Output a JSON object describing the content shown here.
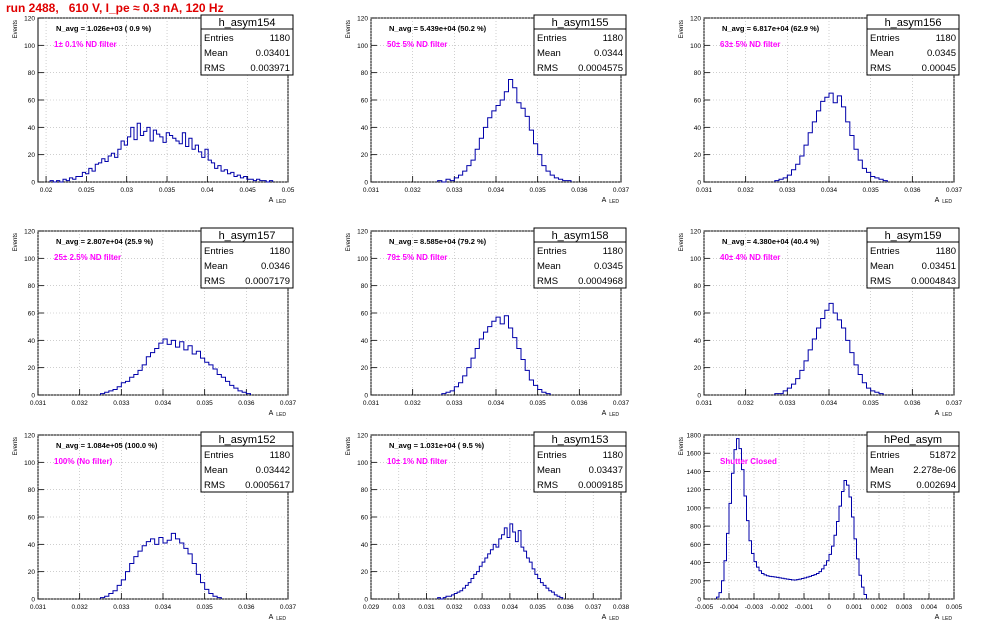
{
  "header": {
    "title": "run 2488,   610 V, I_pe ≈ 0.3 nA, 120 Hz"
  },
  "common": {
    "ylabel": "Events",
    "xlabel": "A",
    "xlabel_sub": "LED",
    "stat_keys": [
      "Entries",
      "Mean",
      "RMS"
    ]
  },
  "colors": {
    "title": "#e00000",
    "annotation": "#ff00ff",
    "histogram": "#0000aa",
    "grid": "#b0b0b0"
  },
  "chart_data": [
    {
      "type": "histogram",
      "name": "h_asym154",
      "navg": "N_avg = 1.026e+03 ( 0.9 %)",
      "annotation": "1± 0.1% ND filter",
      "stats": {
        "Entries": "1180",
        "Mean": "0.03401",
        "RMS": "0.003971"
      },
      "xlim": [
        0.019,
        0.05
      ],
      "ylim": [
        0,
        120
      ],
      "xticks": [
        0.02,
        0.025,
        0.03,
        0.035,
        0.04,
        0.045,
        0.05
      ],
      "xtick_labels": [
        "0.02",
        "0.025",
        "0.03",
        "0.035",
        "0.04",
        "0.045",
        "0.05"
      ],
      "yticks": [
        0,
        20,
        40,
        60,
        80,
        100,
        120
      ],
      "bins": {
        "start": 0.0205,
        "width": 0.0004,
        "counts": [
          1,
          0,
          1,
          0,
          2,
          1,
          3,
          2,
          4,
          4,
          7,
          6,
          10,
          8,
          13,
          14,
          17,
          15,
          19,
          21,
          18,
          24,
          30,
          27,
          33,
          40,
          31,
          43,
          34,
          37,
          40,
          30,
          38,
          35,
          33,
          29,
          36,
          34,
          32,
          30,
          28,
          36,
          26,
          32,
          24,
          27,
          22,
          18,
          24,
          16,
          14,
          10,
          12,
          8,
          9,
          6,
          7,
          4,
          5,
          3,
          4,
          2,
          2,
          1,
          2,
          1,
          1,
          0,
          1
        ]
      }
    },
    {
      "type": "histogram",
      "name": "h_asym155",
      "navg": "N_avg = 5.439e+04 (50.2 %)",
      "annotation": "50± 5% ND filter",
      "stats": {
        "Entries": "1180",
        "Mean": "0.0344",
        "RMS": "0.0004575"
      },
      "xlim": [
        0.031,
        0.037
      ],
      "ylim": [
        0,
        120
      ],
      "xticks": [
        0.031,
        0.032,
        0.033,
        0.034,
        0.035,
        0.036,
        0.037
      ],
      "xtick_labels": [
        "0.031",
        "0.032",
        "0.033",
        "0.034",
        "0.035",
        "0.036",
        "0.037"
      ],
      "yticks": [
        0,
        20,
        40,
        60,
        80,
        100,
        120
      ],
      "bins": {
        "start": 0.0326,
        "width": 0.0001,
        "counts": [
          1,
          0,
          2,
          1,
          3,
          5,
          8,
          12,
          16,
          24,
          32,
          40,
          47,
          52,
          56,
          60,
          66,
          75,
          69,
          58,
          54,
          48,
          38,
          28,
          20,
          12,
          8,
          5,
          3,
          2,
          1,
          1
        ]
      }
    },
    {
      "type": "histogram",
      "name": "h_asym156",
      "navg": "N_avg = 6.817e+04 (62.9 %)",
      "annotation": "63± 5% ND filter",
      "stats": {
        "Entries": "1180",
        "Mean": "0.0345",
        "RMS": "0.00045"
      },
      "xlim": [
        0.031,
        0.037
      ],
      "ylim": [
        0,
        120
      ],
      "xticks": [
        0.031,
        0.032,
        0.033,
        0.034,
        0.035,
        0.036,
        0.037
      ],
      "xtick_labels": [
        "0.031",
        "0.032",
        "0.033",
        "0.034",
        "0.035",
        "0.036",
        "0.037"
      ],
      "yticks": [
        0,
        20,
        40,
        60,
        80,
        100,
        120
      ],
      "bins": {
        "start": 0.0327,
        "width": 0.0001,
        "counts": [
          1,
          2,
          3,
          5,
          9,
          13,
          19,
          27,
          36,
          44,
          52,
          59,
          62,
          65,
          58,
          63,
          55,
          44,
          34,
          24,
          16,
          10,
          7,
          4,
          3,
          2,
          1
        ]
      }
    },
    {
      "type": "histogram",
      "name": "h_asym157",
      "navg": "N_avg = 2.807e+04 (25.9 %)",
      "annotation": "25± 2.5% ND filter",
      "stats": {
        "Entries": "1180",
        "Mean": "0.0346",
        "RMS": "0.0007179"
      },
      "xlim": [
        0.031,
        0.037
      ],
      "ylim": [
        0,
        120
      ],
      "xticks": [
        0.031,
        0.032,
        0.033,
        0.034,
        0.035,
        0.036,
        0.037
      ],
      "xtick_labels": [
        "0.031",
        "0.032",
        "0.033",
        "0.034",
        "0.035",
        "0.036",
        "0.037"
      ],
      "yticks": [
        0,
        20,
        40,
        60,
        80,
        100,
        120
      ],
      "bins": {
        "start": 0.0325,
        "width": 0.0001,
        "counts": [
          1,
          2,
          3,
          4,
          6,
          9,
          10,
          13,
          15,
          18,
          22,
          28,
          31,
          34,
          38,
          41,
          37,
          40,
          35,
          39,
          33,
          36,
          30,
          32,
          27,
          24,
          22,
          19,
          15,
          13,
          10,
          7,
          5,
          3,
          2,
          1
        ]
      }
    },
    {
      "type": "histogram",
      "name": "h_asym158",
      "navg": "N_avg = 8.585e+04 (79.2 %)",
      "annotation": "79± 5% ND filter",
      "stats": {
        "Entries": "1180",
        "Mean": "0.0345",
        "RMS": "0.0004968"
      },
      "xlim": [
        0.031,
        0.037
      ],
      "ylim": [
        0,
        120
      ],
      "xticks": [
        0.031,
        0.032,
        0.033,
        0.034,
        0.035,
        0.036,
        0.037
      ],
      "xtick_labels": [
        "0.031",
        "0.032",
        "0.033",
        "0.034",
        "0.035",
        "0.036",
        "0.037"
      ],
      "yticks": [
        0,
        20,
        40,
        60,
        80,
        100,
        120
      ],
      "bins": {
        "start": 0.0327,
        "width": 0.0001,
        "counts": [
          1,
          2,
          3,
          6,
          9,
          14,
          20,
          27,
          34,
          41,
          46,
          50,
          54,
          57,
          52,
          58,
          49,
          42,
          34,
          26,
          18,
          11,
          7,
          4,
          2,
          1
        ]
      }
    },
    {
      "type": "histogram",
      "name": "h_asym159",
      "navg": "N_avg = 4.380e+04 (40.4 %)",
      "annotation": "40± 4% ND filter",
      "stats": {
        "Entries": "1180",
        "Mean": "0.03451",
        "RMS": "0.0004843"
      },
      "xlim": [
        0.031,
        0.037
      ],
      "ylim": [
        0,
        120
      ],
      "xticks": [
        0.031,
        0.032,
        0.033,
        0.034,
        0.035,
        0.036,
        0.037
      ],
      "xtick_labels": [
        "0.031",
        "0.032",
        "0.033",
        "0.034",
        "0.035",
        "0.036",
        "0.037"
      ],
      "yticks": [
        0,
        20,
        40,
        60,
        80,
        100,
        120
      ],
      "bins": {
        "start": 0.0327,
        "width": 0.0001,
        "counts": [
          1,
          1,
          3,
          5,
          8,
          12,
          18,
          25,
          33,
          41,
          49,
          56,
          62,
          67,
          60,
          55,
          49,
          40,
          31,
          22,
          15,
          9,
          5,
          3,
          2,
          1
        ]
      }
    },
    {
      "type": "histogram",
      "name": "h_asym152",
      "navg": "N_avg = 1.084e+05 (100.0 %)",
      "annotation": "100% (No filter)",
      "stats": {
        "Entries": "1180",
        "Mean": "0.03442",
        "RMS": "0.0005617"
      },
      "xlim": [
        0.031,
        0.037
      ],
      "ylim": [
        0,
        120
      ],
      "xticks": [
        0.031,
        0.032,
        0.033,
        0.034,
        0.035,
        0.036,
        0.037
      ],
      "xtick_labels": [
        "0.031",
        "0.032",
        "0.033",
        "0.034",
        "0.035",
        "0.036",
        "0.037"
      ],
      "yticks": [
        0,
        20,
        40,
        60,
        80,
        100,
        120
      ],
      "bins": {
        "start": 0.0325,
        "width": 0.0001,
        "counts": [
          1,
          2,
          4,
          6,
          10,
          14,
          20,
          26,
          31,
          35,
          39,
          42,
          44,
          40,
          45,
          41,
          43,
          48,
          44,
          41,
          37,
          33,
          26,
          18,
          12,
          7,
          4,
          2,
          1
        ]
      }
    },
    {
      "type": "histogram",
      "name": "h_asym153",
      "navg": "N_avg = 1.031e+04 ( 9.5 %)",
      "annotation": "10± 1% ND filter",
      "stats": {
        "Entries": "1180",
        "Mean": "0.03437",
        "RMS": "0.0009185"
      },
      "xlim": [
        0.029,
        0.038
      ],
      "ylim": [
        0,
        120
      ],
      "xticks": [
        0.029,
        0.03,
        0.031,
        0.032,
        0.033,
        0.034,
        0.035,
        0.036,
        0.037,
        0.038
      ],
      "xtick_labels": [
        "0.029",
        "0.03",
        "0.031",
        "0.032",
        "0.033",
        "0.034",
        "0.035",
        "0.036",
        "0.037",
        "0.038"
      ],
      "yticks": [
        0,
        20,
        40,
        60,
        80,
        100,
        120
      ],
      "bins": {
        "start": 0.0314,
        "width": 0.0001,
        "counts": [
          1,
          0,
          1,
          2,
          2,
          3,
          4,
          5,
          6,
          8,
          10,
          12,
          15,
          18,
          20,
          24,
          27,
          30,
          33,
          36,
          40,
          38,
          44,
          47,
          52,
          45,
          55,
          49,
          42,
          50,
          38,
          35,
          30,
          27,
          22,
          18,
          15,
          12,
          10,
          8,
          6,
          5,
          3,
          2,
          1
        ]
      }
    },
    {
      "type": "histogram",
      "name": "hPed_asym",
      "annotation": "Shutter Closed",
      "stats": {
        "Entries": "51872",
        "Mean": "2.278e-06",
        "RMS": "0.002694"
      },
      "xlim": [
        -0.005,
        0.005
      ],
      "ylim": [
        0,
        1800
      ],
      "xticks": [
        -0.005,
        -0.004,
        -0.003,
        -0.002,
        -0.001,
        0,
        0.001,
        0.002,
        0.003,
        0.004,
        0.005
      ],
      "xtick_labels": [
        "-0.005",
        "-0.004",
        "-0.003",
        "-0.002",
        "-0.001",
        "0",
        "0.001",
        "0.002",
        "0.003",
        "0.004",
        "0.005"
      ],
      "yticks": [
        0,
        200,
        400,
        600,
        800,
        1000,
        1200,
        1400,
        1600,
        1800
      ],
      "bins": {
        "start": -0.0045,
        "width": 0.0001,
        "counts": [
          20,
          70,
          200,
          420,
          720,
          1050,
          1380,
          1640,
          1760,
          1650,
          1420,
          1130,
          860,
          640,
          500,
          410,
          350,
          310,
          280,
          265,
          255,
          248,
          245,
          242,
          238,
          232,
          228,
          222,
          218,
          214,
          210,
          208,
          212,
          218,
          225,
          232,
          240,
          248,
          258,
          268,
          280,
          300,
          330,
          370,
          420,
          490,
          580,
          700,
          850,
          1020,
          1180,
          1300,
          1250,
          1120,
          900,
          660,
          440,
          260,
          130,
          50
        ]
      }
    }
  ]
}
